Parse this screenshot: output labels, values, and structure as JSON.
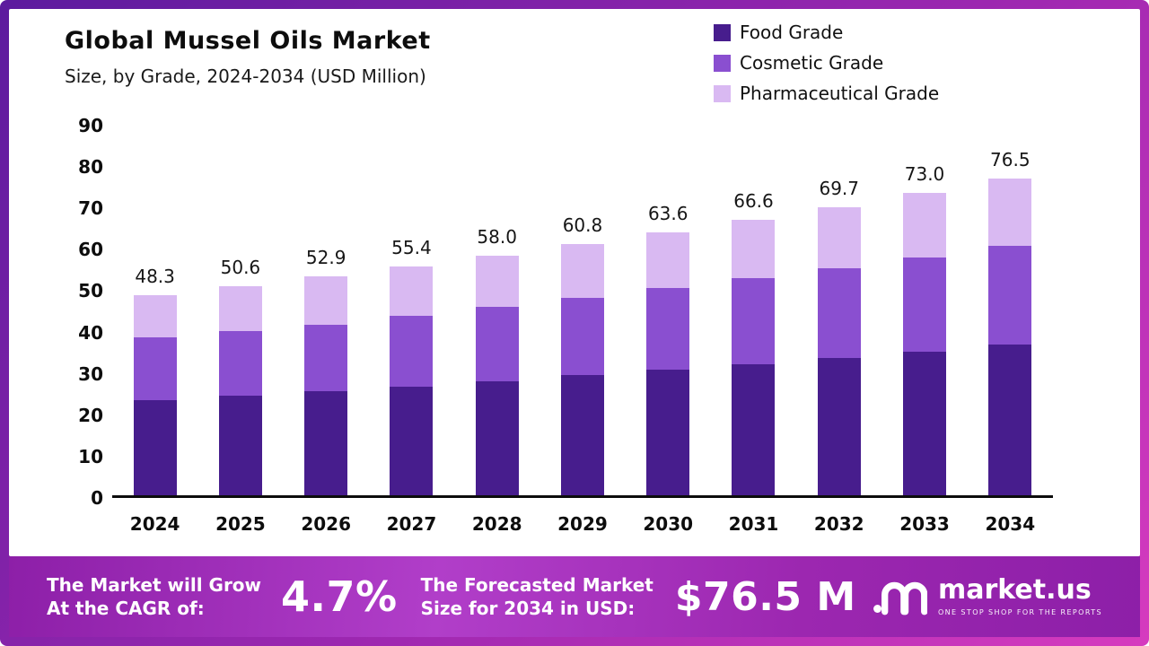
{
  "header": {
    "title": "Global Mussel Oils Market",
    "subtitle": "Size, by Grade, 2024-2034 (USD Million)"
  },
  "chart_data": {
    "type": "bar",
    "stacked": true,
    "categories": [
      "2024",
      "2025",
      "2026",
      "2027",
      "2028",
      "2029",
      "2030",
      "2031",
      "2032",
      "2033",
      "2034"
    ],
    "series": [
      {
        "name": "Food Grade",
        "color": "#471d8d",
        "values": [
          23.0,
          24.0,
          25.1,
          26.3,
          27.6,
          29.0,
          30.3,
          31.7,
          33.2,
          34.8,
          36.5
        ]
      },
      {
        "name": "Cosmetic Grade",
        "color": "#8a4fd0",
        "values": [
          15.1,
          15.6,
          16.2,
          17.0,
          17.9,
          18.8,
          19.7,
          20.7,
          21.6,
          22.7,
          23.7
        ]
      },
      {
        "name": "Pharmaceutical Grade",
        "color": "#d9b9f2",
        "values": [
          10.2,
          11.0,
          11.6,
          12.1,
          12.5,
          13.0,
          13.6,
          14.2,
          14.9,
          15.5,
          16.3
        ]
      }
    ],
    "totals": [
      "48.3",
      "50.6",
      "52.9",
      "55.4",
      "58.0",
      "60.8",
      "63.6",
      "66.6",
      "69.7",
      "73.0",
      "76.5"
    ],
    "title": "Global Mussel Oils Market",
    "subtitle": "Size, by Grade, 2024-2034 (USD Million)",
    "xlabel": "",
    "ylabel": "",
    "ylim": [
      0,
      90
    ],
    "yticks": [
      0,
      10,
      20,
      30,
      40,
      50,
      60,
      70,
      80,
      90
    ],
    "grid": false,
    "legend_position": "top-right"
  },
  "banner": {
    "cagr_label_line1": "The Market will Grow",
    "cagr_label_line2": "At the CAGR of:",
    "cagr_value": "4.7%",
    "forecast_label_line1": "The Forecasted Market",
    "forecast_label_line2": "Size for 2034 in USD:",
    "forecast_value": "$76.5 M",
    "brand_name": "market.us",
    "brand_tagline": "ONE STOP SHOP FOR THE REPORTS"
  },
  "colors": {
    "food_grade": "#471d8d",
    "cosmetic_grade": "#8a4fd0",
    "pharmaceutical_grade": "#d9b9f2",
    "frame_start": "#5c1b9e",
    "frame_end": "#d63bbf",
    "banner_base": "#9c27b0"
  }
}
